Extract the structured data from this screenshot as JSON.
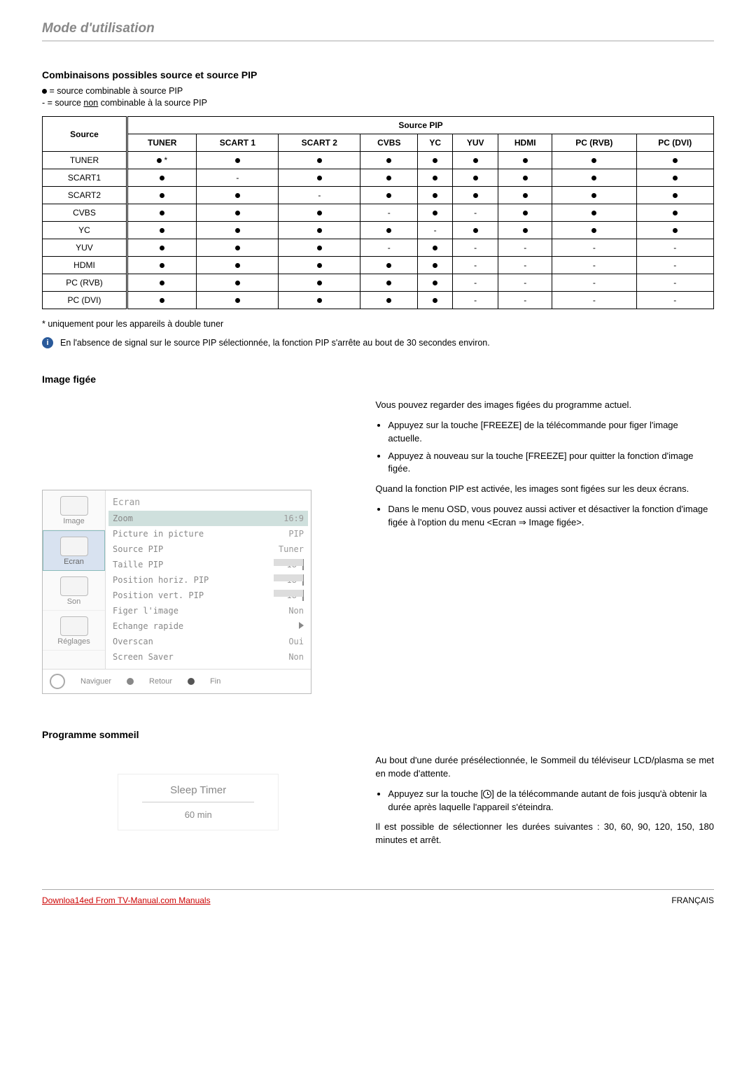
{
  "header": {
    "title": "Mode d'utilisation"
  },
  "section_combi": {
    "title": "Combinaisons possibles source et source PIP",
    "legend1_prefix": "●",
    "legend1": "= source combinable à source PIP",
    "legend2_prefix": "-  = source ",
    "legend2_underlined": "non",
    "legend2_suffix": " combinable à la source PIP"
  },
  "table": {
    "source_label": "Source",
    "pip_label": "Source PIP",
    "columns": [
      "TUNER",
      "SCART 1",
      "SCART 2",
      "CVBS",
      "YC",
      "YUV",
      "HDMI",
      "PC (RVB)",
      "PC (DVI)"
    ],
    "rows": [
      {
        "name": "TUNER",
        "cells": [
          "●*",
          "●",
          "●",
          "●",
          "●",
          "●",
          "●",
          "●",
          "●"
        ]
      },
      {
        "name": "SCART1",
        "cells": [
          "●",
          "-",
          "●",
          "●",
          "●",
          "●",
          "●",
          "●",
          "●"
        ]
      },
      {
        "name": "SCART2",
        "cells": [
          "●",
          "●",
          "-",
          "●",
          "●",
          "●",
          "●",
          "●",
          "●"
        ]
      },
      {
        "name": "CVBS",
        "cells": [
          "●",
          "●",
          "●",
          "-",
          "●",
          "-",
          "●",
          "●",
          "●"
        ]
      },
      {
        "name": "YC",
        "cells": [
          "●",
          "●",
          "●",
          "●",
          "-",
          "●",
          "●",
          "●",
          "●"
        ]
      },
      {
        "name": "YUV",
        "cells": [
          "●",
          "●",
          "●",
          "-",
          "●",
          "-",
          "-",
          "-",
          "-"
        ]
      },
      {
        "name": "HDMI",
        "cells": [
          "●",
          "●",
          "●",
          "●",
          "●",
          "-",
          "-",
          "-",
          "-"
        ]
      },
      {
        "name": "PC (RVB)",
        "cells": [
          "●",
          "●",
          "●",
          "●",
          "●",
          "-",
          "-",
          "-",
          "-"
        ]
      },
      {
        "name": "PC (DVI)",
        "cells": [
          "●",
          "●",
          "●",
          "●",
          "●",
          "-",
          "-",
          "-",
          "-"
        ]
      }
    ]
  },
  "footnote": "* uniquement pour les appareils à double tuner",
  "info_note": "En l'absence de signal sur le source PIP sélectionnée, la fonction PIP s'arrête au bout de 30 secondes environ.",
  "section_figee": {
    "title": "Image figée",
    "para1": "Vous pouvez regarder des images figées du programme actuel.",
    "b1": "Appuyez sur la touche [FREEZE] de la télécommande pour figer l'image actuelle.",
    "b2": "Appuyez à nouveau sur la touche [FREEZE] pour quitter la fonction d'image figée.",
    "para2": "Quand la fonction PIP est activée, les images sont figées sur les deux écrans.",
    "b3a": "Dans le menu OSD, vous pouvez aussi activer et désactiver la fonction d'image figée à l'option du menu <Ecran ",
    "b3arrow": "⇒",
    "b3b": " Image figée>."
  },
  "osd": {
    "title": "Ecran",
    "tabs": [
      "Image",
      "Ecran",
      "Son",
      "Réglages"
    ],
    "active_tab_index": 1,
    "rows": [
      {
        "label": "Zoom",
        "value": "16:9",
        "highlight": true
      },
      {
        "label": "Picture in picture",
        "value": "PIP"
      },
      {
        "label": "Source PIP",
        "value": "Tuner"
      },
      {
        "label": "Taille PIP",
        "num": "18",
        "slider": true
      },
      {
        "label": "Position horiz. PIP",
        "num": "18",
        "slider": true
      },
      {
        "label": "Position vert. PIP",
        "num": "18",
        "slider": true
      },
      {
        "label": "Figer l'image",
        "value": "Non"
      },
      {
        "label": "Echange rapide",
        "value": "▷"
      },
      {
        "label": "Overscan",
        "value": "Oui"
      },
      {
        "label": "Screen Saver",
        "value": "Non"
      }
    ],
    "footer": {
      "nav": "Naviguer",
      "back": "Retour",
      "end": "Fin"
    }
  },
  "section_sommeil": {
    "title": "Programme sommeil",
    "box_title": "Sleep Timer",
    "box_value": "60 min",
    "para1": "Au bout d'une durée présélectionnée, le Sommeil du téléviseur LCD/plasma se met en mode d'attente.",
    "b1a": "Appuyez sur la touche [",
    "b1b": "] de la télécommande autant de fois jusqu'à obtenir la durée après laquelle l'appareil s'éteindra.",
    "para2": "Il est possible de sélectionner les durées suivantes : 30, 60, 90, 120, 150, 180 minutes et arrêt."
  },
  "footer": {
    "left_a": "Downlo",
    "left_mid": "14",
    "left_b": "ed From TV-Manual.com Manuals",
    "right": "FRANÇAIS"
  }
}
